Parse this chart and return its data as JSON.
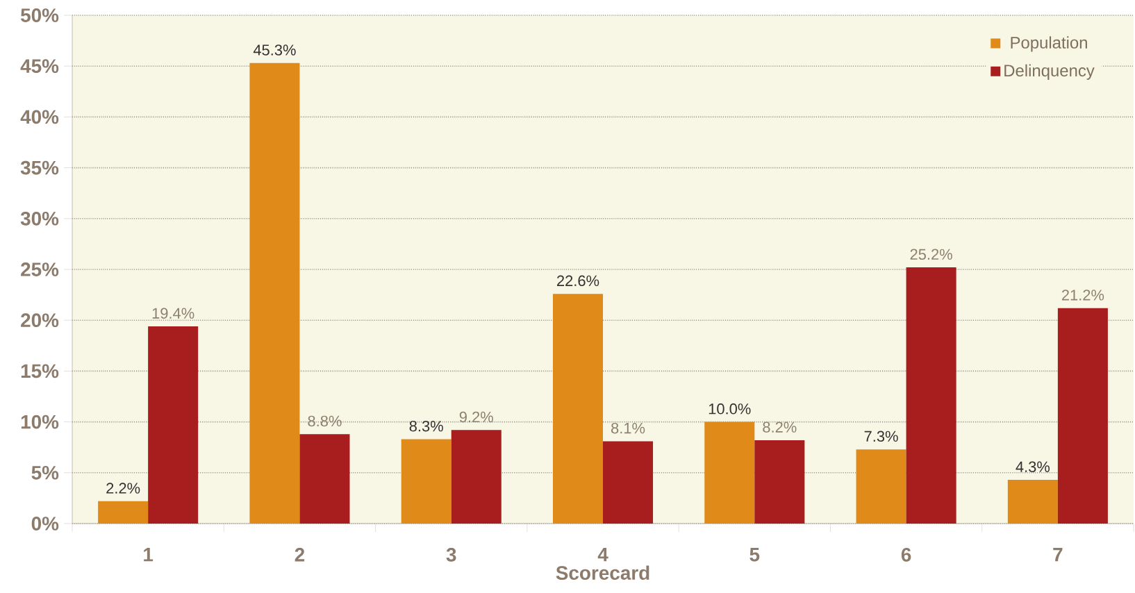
{
  "chart_data": {
    "type": "bar",
    "xlabel": "Scorecard",
    "categories": [
      "1",
      "2",
      "3",
      "4",
      "5",
      "6",
      "7"
    ],
    "series": [
      {
        "name": "Population",
        "color": "#e08a1a",
        "values": [
          2.2,
          45.3,
          8.3,
          22.6,
          10.0,
          7.3,
          4.3
        ],
        "value_labels": [
          "2.2%",
          "45.3%",
          "8.3%",
          "22.6%",
          "10.0%",
          "7.3%",
          "4.3%"
        ]
      },
      {
        "name": "Delinquency",
        "color": "#a81e1e",
        "values": [
          19.4,
          8.8,
          9.2,
          8.1,
          8.2,
          25.2,
          21.2
        ],
        "value_labels": [
          "19.4%",
          "8.8%",
          "9.2%",
          "8.1%",
          "8.2%",
          "25.2%",
          "21.2%"
        ]
      }
    ],
    "ylim": [
      0,
      50
    ],
    "yticks": [
      {
        "value": 0,
        "label": "0%"
      },
      {
        "value": 5,
        "label": "5%"
      },
      {
        "value": 10,
        "label": "10%"
      },
      {
        "value": 15,
        "label": "15%"
      },
      {
        "value": 20,
        "label": "20%"
      },
      {
        "value": 25,
        "label": "25%"
      },
      {
        "value": 30,
        "label": "30%"
      },
      {
        "value": 35,
        "label": "35%"
      },
      {
        "value": 40,
        "label": "40%"
      },
      {
        "value": 45,
        "label": "45%"
      },
      {
        "value": 50,
        "label": "50%"
      }
    ],
    "grid": "y",
    "legend": "top right"
  }
}
